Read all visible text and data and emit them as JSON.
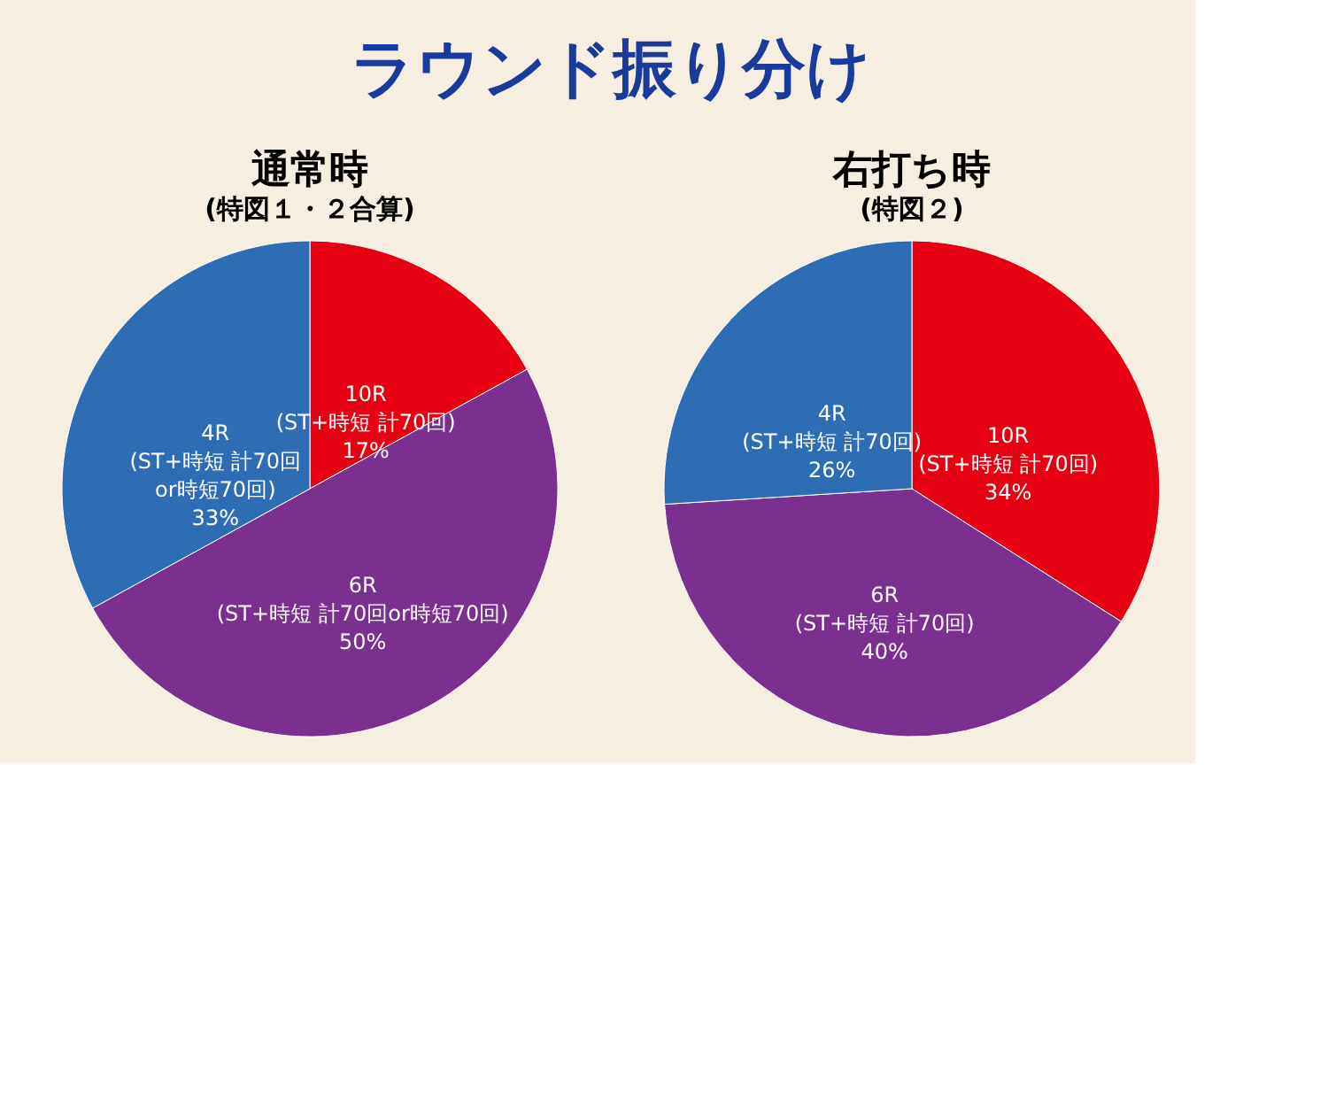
{
  "chart_data": [
    {
      "type": "pie",
      "title": "通常時",
      "subtitle": "(特図１・２合算)",
      "annotations": [
        "ラウンド振り分け"
      ],
      "categories": [
        "10R\n(ST+時短 計70回)",
        "6R\n(ST+時短 計70回or時短70回)",
        "4R\n(ST+時短 計70回\nor時短70回)"
      ],
      "values": [
        17,
        50,
        33
      ],
      "value_labels": [
        "17%",
        "50%",
        "33%"
      ],
      "colors": [
        "#e60012",
        "#7b2f8e",
        "#2e6db4"
      ]
    },
    {
      "type": "pie",
      "title": "右打ち時",
      "subtitle": "(特図２)",
      "categories": [
        "10R\n(ST+時短 計70回)",
        "6R\n(ST+時短 計70回)",
        "4R\n(ST+時短 計70回)"
      ],
      "values": [
        34,
        40,
        26
      ],
      "value_labels": [
        "34%",
        "40%",
        "26%"
      ],
      "colors": [
        "#e60012",
        "#7b2f8e",
        "#2e6db4"
      ]
    }
  ]
}
